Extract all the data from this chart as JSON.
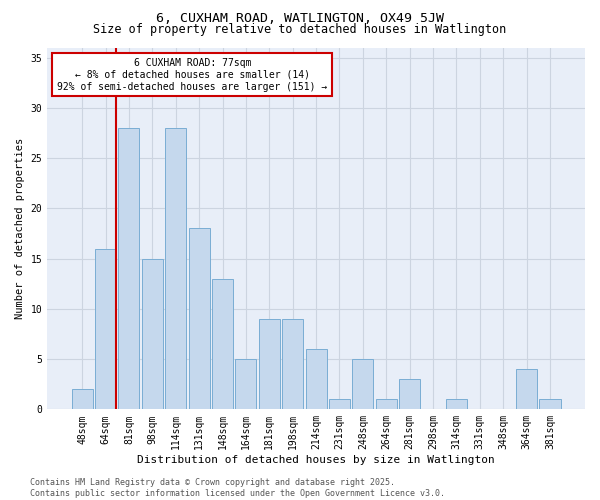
{
  "title1": "6, CUXHAM ROAD, WATLINGTON, OX49 5JW",
  "title2": "Size of property relative to detached houses in Watlington",
  "xlabel": "Distribution of detached houses by size in Watlington",
  "ylabel": "Number of detached properties",
  "categories": [
    "48sqm",
    "64sqm",
    "81sqm",
    "98sqm",
    "114sqm",
    "131sqm",
    "148sqm",
    "164sqm",
    "181sqm",
    "198sqm",
    "214sqm",
    "231sqm",
    "248sqm",
    "264sqm",
    "281sqm",
    "298sqm",
    "314sqm",
    "331sqm",
    "348sqm",
    "364sqm",
    "381sqm"
  ],
  "values": [
    2,
    16,
    28,
    15,
    28,
    18,
    13,
    5,
    9,
    9,
    6,
    1,
    5,
    1,
    3,
    0,
    1,
    0,
    0,
    4,
    1
  ],
  "bar_color": "#c5d8ed",
  "bar_edge_color": "#7aadd4",
  "annotation_line1": "6 CUXHAM ROAD: 77sqm",
  "annotation_line2": "← 8% of detached houses are smaller (14)",
  "annotation_line3": "92% of semi-detached houses are larger (151) →",
  "vline_color": "#cc0000",
  "ylim": [
    0,
    36
  ],
  "yticks": [
    0,
    5,
    10,
    15,
    20,
    25,
    30,
    35
  ],
  "grid_color": "#ccd4e0",
  "background_color": "#e8eef8",
  "footer_text": "Contains HM Land Registry data © Crown copyright and database right 2025.\nContains public sector information licensed under the Open Government Licence v3.0.",
  "title1_fontsize": 9.5,
  "title2_fontsize": 8.5,
  "xlabel_fontsize": 8,
  "ylabel_fontsize": 7.5,
  "tick_fontsize": 7,
  "annotation_fontsize": 7,
  "footer_fontsize": 6
}
